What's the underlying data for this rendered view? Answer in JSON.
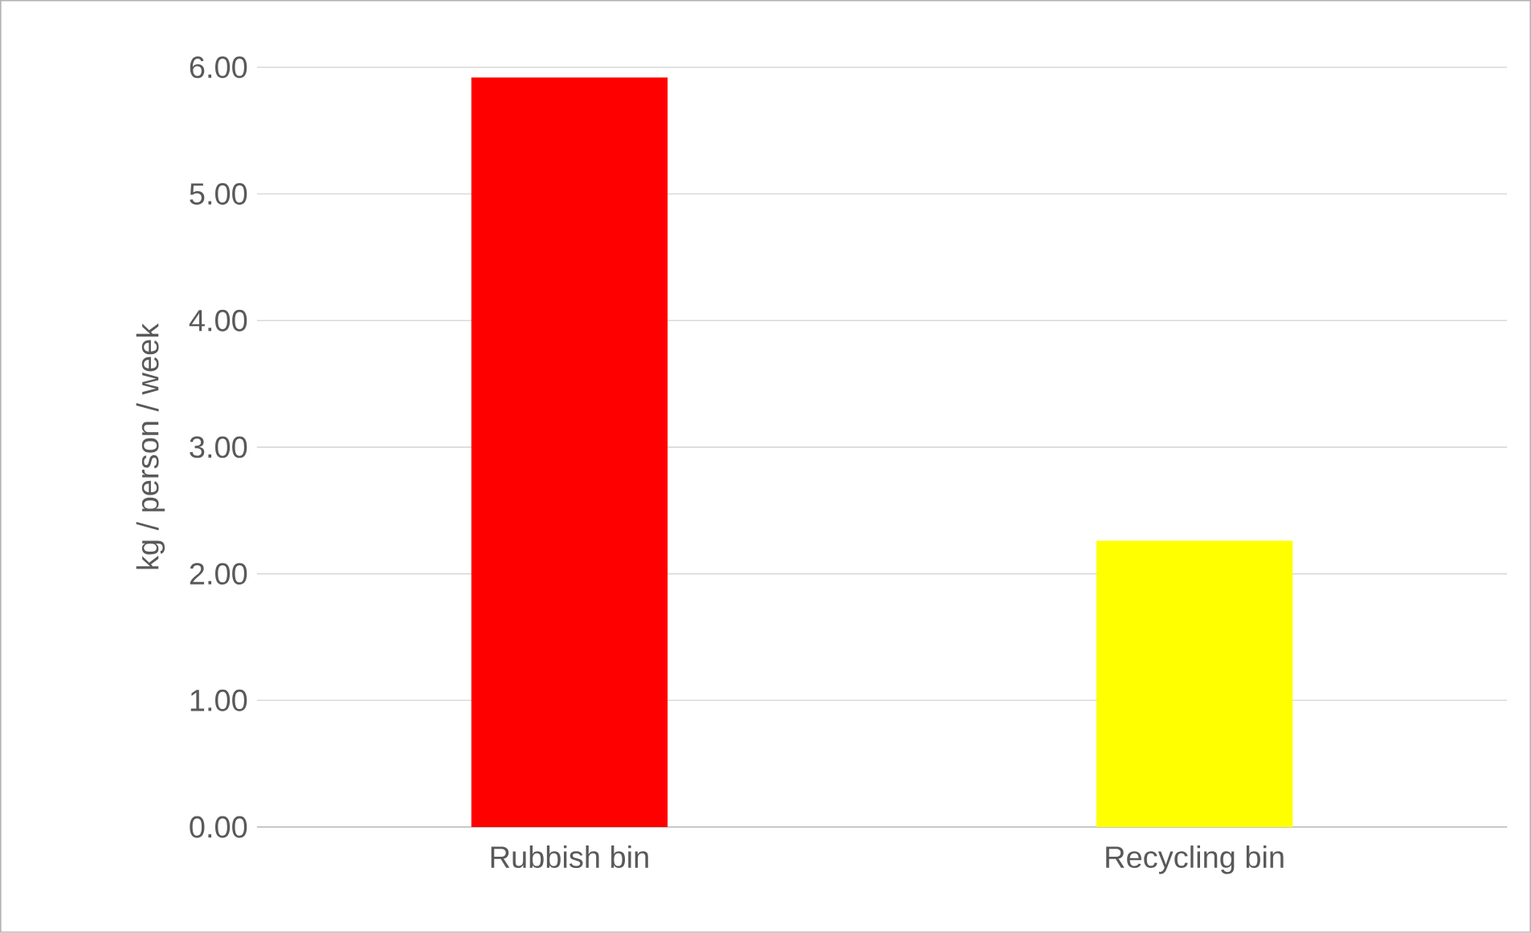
{
  "chart_data": {
    "type": "bar",
    "ylabel": "kg / person / week",
    "categories": [
      "Rubbish bin",
      "Recycling bin"
    ],
    "values": [
      5.92,
      2.26
    ],
    "colors": [
      "#ff0000",
      "#ffff00"
    ],
    "ylim": [
      0,
      6
    ],
    "yticks": [
      {
        "value": 0,
        "label": "0.00"
      },
      {
        "value": 1,
        "label": "1.00"
      },
      {
        "value": 2,
        "label": "2.00"
      },
      {
        "value": 3,
        "label": "3.00"
      },
      {
        "value": 4,
        "label": "4.00"
      },
      {
        "value": 5,
        "label": "5.00"
      },
      {
        "value": 6,
        "label": "6.00"
      }
    ],
    "grid": "y"
  }
}
